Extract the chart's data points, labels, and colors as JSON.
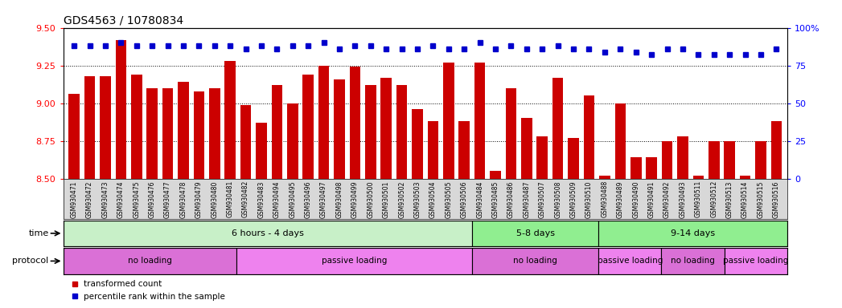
{
  "title": "GDS4563 / 10780834",
  "samples": [
    "GSM930471",
    "GSM930472",
    "GSM930473",
    "GSM930474",
    "GSM930475",
    "GSM930476",
    "GSM930477",
    "GSM930478",
    "GSM930479",
    "GSM930480",
    "GSM930481",
    "GSM930482",
    "GSM930483",
    "GSM930494",
    "GSM930495",
    "GSM930496",
    "GSM930497",
    "GSM930498",
    "GSM930499",
    "GSM930500",
    "GSM930501",
    "GSM930502",
    "GSM930503",
    "GSM930504",
    "GSM930505",
    "GSM930506",
    "GSM930484",
    "GSM930485",
    "GSM930486",
    "GSM930487",
    "GSM930507",
    "GSM930508",
    "GSM930509",
    "GSM930510",
    "GSM930488",
    "GSM930489",
    "GSM930490",
    "GSM930491",
    "GSM930492",
    "GSM930493",
    "GSM930511",
    "GSM930512",
    "GSM930513",
    "GSM930514",
    "GSM930515",
    "GSM930516"
  ],
  "bar_values": [
    9.06,
    9.18,
    9.18,
    9.42,
    9.19,
    9.1,
    9.1,
    9.14,
    9.08,
    9.1,
    9.28,
    8.99,
    8.87,
    9.12,
    9.0,
    9.19,
    9.25,
    9.16,
    9.24,
    9.12,
    9.17,
    9.12,
    8.96,
    8.88,
    9.27,
    8.88,
    9.27,
    8.55,
    9.1,
    8.9,
    8.78,
    9.17,
    8.77,
    9.05,
    8.52,
    9.0,
    8.64,
    8.64,
    8.75,
    8.78,
    8.52,
    8.75,
    8.75,
    8.52,
    8.75,
    8.88
  ],
  "dot_values": [
    88,
    88,
    88,
    90,
    88,
    88,
    88,
    88,
    88,
    88,
    88,
    86,
    88,
    86,
    88,
    88,
    90,
    86,
    88,
    88,
    86,
    86,
    86,
    88,
    86,
    86,
    90,
    86,
    88,
    86,
    86,
    88,
    86,
    86,
    84,
    86,
    84,
    82,
    86,
    86,
    82,
    82,
    82,
    82,
    82,
    86
  ],
  "ylim_left": [
    8.5,
    9.5
  ],
  "ylim_right": [
    0,
    100
  ],
  "yticks_left": [
    8.5,
    8.75,
    9.0,
    9.25,
    9.5
  ],
  "yticks_right": [
    0,
    25,
    50,
    75,
    100
  ],
  "bar_color": "#cc0000",
  "dot_color": "#0000cc",
  "time_groups": [
    {
      "label": "6 hours - 4 days",
      "start": 0,
      "end": 26,
      "color": "#c8f0c8"
    },
    {
      "label": "5-8 days",
      "start": 26,
      "end": 34,
      "color": "#90ee90"
    },
    {
      "label": "9-14 days",
      "start": 34,
      "end": 46,
      "color": "#90ee90"
    }
  ],
  "protocol_groups": [
    {
      "label": "no loading",
      "start": 0,
      "end": 11,
      "color": "#da70d6"
    },
    {
      "label": "passive loading",
      "start": 11,
      "end": 26,
      "color": "#ee82ee"
    },
    {
      "label": "no loading",
      "start": 26,
      "end": 34,
      "color": "#da70d6"
    },
    {
      "label": "passive loading",
      "start": 34,
      "end": 38,
      "color": "#ee82ee"
    },
    {
      "label": "no loading",
      "start": 38,
      "end": 42,
      "color": "#da70d6"
    },
    {
      "label": "passive loading",
      "start": 42,
      "end": 46,
      "color": "#ee82ee"
    }
  ],
  "legend_bar_label": "transformed count",
  "legend_dot_label": "percentile rank within the sample"
}
